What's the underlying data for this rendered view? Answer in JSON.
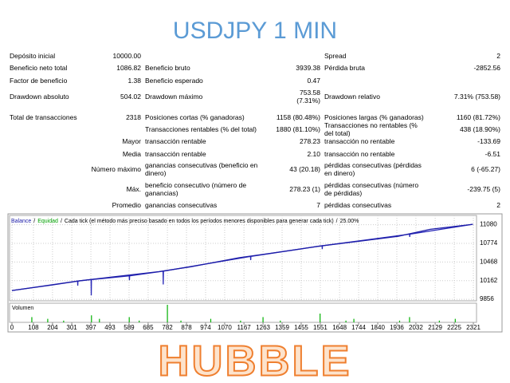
{
  "header": {
    "title": "USDJPY 1 MIN"
  },
  "table": {
    "rows": [
      [
        "Depósito inicial",
        "10000.00",
        null,
        null,
        "Spread",
        "2"
      ],
      [
        "Beneficio neto total",
        "1086.82",
        "Beneficio bruto",
        "3939.38",
        "Pérdida bruta",
        "-2852.56"
      ],
      [
        "Factor de beneficio",
        "1.38",
        "Beneficio esperado",
        "0.47",
        null,
        null
      ],
      [
        "Drawdown absoluto",
        "504.02",
        "Drawdown máximo",
        "753.58 (7.31%)",
        "Drawdown relativo",
        "7.31% (753.58)"
      ],
      [
        "Total de transacciones",
        "2318",
        "Posiciones cortas (% ganadoras)",
        "1158 (80.48%)",
        "Posiciones largas (% ganadoras)",
        "1160 (81.72%)"
      ],
      [
        null,
        null,
        "Transacciones rentables (% del total)",
        "1880 (81.10%)",
        "Transacciones no rentables (% del total)",
        "438 (18.90%)"
      ],
      [
        "Mayor",
        null,
        "transacción rentable",
        "278.23",
        "transacción no rentable",
        "-133.69"
      ],
      [
        "Media",
        null,
        "transacción rentable",
        "2.10",
        "transacción no rentable",
        "-6.51"
      ],
      [
        "Número máximo",
        null,
        "ganancias consecutivas (beneficio en dinero)",
        "43 (20.18)",
        "pérdidas consecutivas (pérdidas en dinero)",
        "6 (-65.27)"
      ],
      [
        "Máx.",
        null,
        "beneficio consecutivo (número de ganancias)",
        "278.23 (1)",
        "pérdidas consecutivas (número de pérdidas)",
        "-239.75 (5)"
      ],
      [
        "Promedio",
        null,
        "ganancias consecutivas",
        "7",
        "pérdidas consecutivas",
        "2"
      ]
    ]
  },
  "chart_data": {
    "type": "line",
    "legend_separator": "/",
    "note": "Cada tick (el método más preciso basado en todos los períodos menores disponibles para generar cada tick)",
    "percent": "25.00%",
    "xlim": [
      0,
      2337
    ],
    "ylim": [
      9831,
      11206
    ],
    "xticks": [
      0,
      108,
      204,
      301,
      397,
      493,
      589,
      685,
      782,
      878,
      974,
      1070,
      1167,
      1263,
      1359,
      1455,
      1551,
      1648,
      1744,
      1840,
      1936,
      2032,
      2129,
      2225,
      2321
    ],
    "yticks": [
      9856,
      10162,
      10468,
      10774,
      11080
    ],
    "grid": true,
    "series": [
      {
        "name": "Balance",
        "color": "#1c1ca8",
        "legend_color": "#1c1ca8",
        "x": [
          0,
          200,
          340,
          500,
          741,
          900,
          1142,
          1300,
          1543,
          1750,
          1944,
          2104,
          2318
        ],
        "values": [
          10000,
          10090,
          10159,
          10220,
          10311,
          10390,
          10538,
          10610,
          10727,
          10810,
          10891,
          11005,
          11087
        ]
      },
      {
        "name": "Equidad",
        "color": "#2a2ab8",
        "legend_color": "#00a000",
        "x": [
          0,
          330,
          331,
          332,
          398,
          399,
          400,
          590,
          591,
          592,
          760,
          761,
          762,
          1200,
          1201,
          1202,
          1560,
          1561,
          1562,
          2000,
          2001,
          2002,
          2318
        ],
        "values": [
          10000,
          10155,
          10080,
          10155,
          10180,
          9920,
          10180,
          10240,
          10170,
          10240,
          10318,
          10100,
          10318,
          10560,
          10500,
          10560,
          10735,
          10680,
          10735,
          10925,
          10880,
          10925,
          11087
        ]
      }
    ],
    "volume": {
      "label": "Volumen",
      "color": "#00b000",
      "ylim": [
        0,
        10
      ],
      "x": [
        100,
        180,
        260,
        400,
        440,
        590,
        640,
        782,
        850,
        1000,
        1150,
        1263,
        1350,
        1550,
        1680,
        1720,
        1950,
        2000,
        2150,
        2230
      ],
      "values": [
        3,
        2,
        1,
        4,
        2,
        3,
        1,
        10,
        1,
        2,
        1,
        3,
        1,
        5,
        1,
        2,
        1,
        3,
        1,
        2
      ]
    }
  },
  "footer": {
    "brand": "HUBBLE"
  }
}
